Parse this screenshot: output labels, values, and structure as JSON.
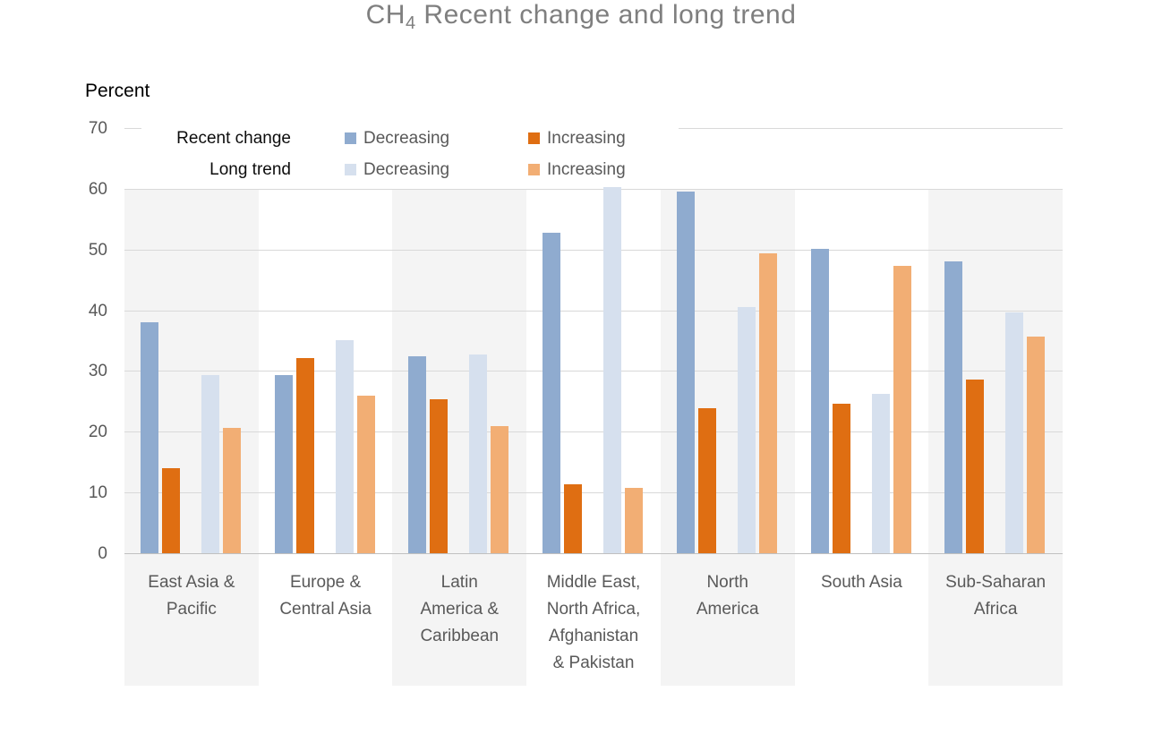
{
  "chart_data": {
    "type": "bar",
    "title": "CH4 Recent change and long trend",
    "title_parts": {
      "prefix": "CH",
      "subscript": "4",
      "rest": "Recent change and long trend"
    },
    "ylabel": "Percent",
    "ylim": [
      0,
      70
    ],
    "yticks": [
      0,
      10,
      20,
      30,
      40,
      50,
      60,
      70
    ],
    "grid": true,
    "legend_position": "top-left-inside",
    "categories": [
      "East Asia & Pacific",
      "Europe & Central Asia",
      "Latin America & Caribbean",
      "Middle East, North Africa, Afghanistan & Pakistan",
      "North America",
      "South Asia",
      "Sub-Saharan Africa"
    ],
    "category_label_lines": [
      [
        "East Asia &",
        "Pacific"
      ],
      [
        "Europe &",
        "Central Asia"
      ],
      [
        "Latin",
        "America &",
        "Caribbean"
      ],
      [
        "Middle East,",
        "North Africa,",
        "Afghanistan",
        "& Pakistan"
      ],
      [
        "North",
        "America"
      ],
      [
        "South Asia"
      ],
      [
        "Sub-Saharan",
        "Africa"
      ]
    ],
    "series": [
      {
        "key": "recent-change-decreasing",
        "group": "Recent change",
        "name": "Decreasing",
        "color": "#8FABCF",
        "values": [
          38.0,
          29.3,
          32.5,
          52.8,
          59.6,
          50.1,
          48.1
        ]
      },
      {
        "key": "recent-change-increasing",
        "group": "Recent change",
        "name": "Increasing",
        "color": "#DF6E12",
        "values": [
          14.0,
          32.1,
          25.3,
          11.3,
          23.9,
          24.6,
          28.6
        ]
      },
      {
        "key": "long-trend-decreasing",
        "group": "Long trend",
        "name": "Decreasing",
        "color": "#D6E0EE",
        "values": [
          29.4,
          35.1,
          32.7,
          60.3,
          40.5,
          26.2,
          39.7
        ]
      },
      {
        "key": "long-trend-increasing",
        "group": "Long trend",
        "name": "Increasing",
        "color": "#F2AE74",
        "values": [
          20.7,
          26.0,
          20.9,
          10.7,
          49.4,
          47.3,
          35.6
        ]
      }
    ],
    "legend": {
      "rows": [
        {
          "header": "Recent change",
          "entries": [
            {
              "label": "Decreasing",
              "color": "#8FABCF"
            },
            {
              "label": "Increasing",
              "color": "#DF6E12"
            }
          ]
        },
        {
          "header": "Long trend",
          "entries": [
            {
              "label": "Decreasing",
              "color": "#D6E0EE"
            },
            {
              "label": "Increasing",
              "color": "#F2AE74"
            }
          ]
        }
      ]
    },
    "colors": {
      "band": "#F4F4F4",
      "gridline": "#D9D9D9",
      "axis_line": "#C0C0C0",
      "title_text": "#7F7F7F",
      "tick_text": "#595959",
      "category_text": "#595959",
      "legend_header_text": "#0D0D0D",
      "legend_label_text": "#595959",
      "background": "#FFFFFF"
    }
  }
}
